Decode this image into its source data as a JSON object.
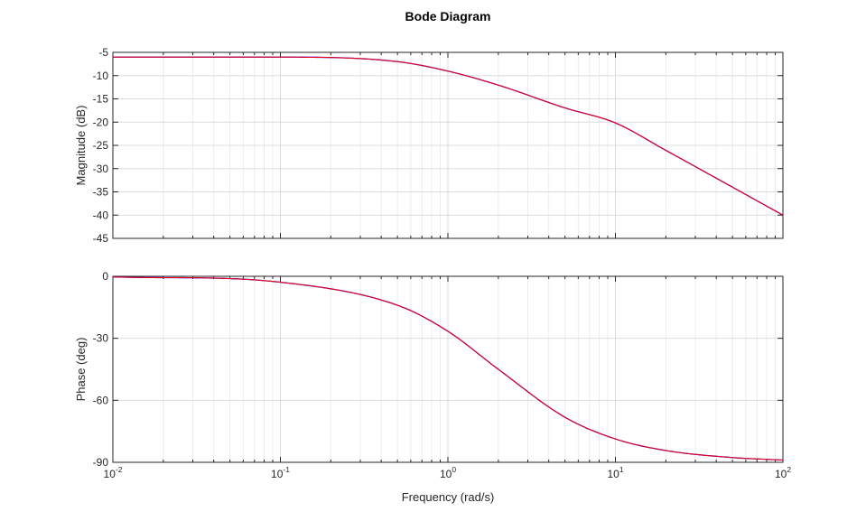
{
  "chart_data": {
    "type": "line",
    "title": "Bode Diagram",
    "xlabel": "Frequency (rad/s)",
    "xscale": "log",
    "xlim": [
      0.01,
      100
    ],
    "xticks": [
      {
        "base": "10",
        "exp": "-2"
      },
      {
        "base": "10",
        "exp": "-1"
      },
      {
        "base": "10",
        "exp": "0"
      },
      {
        "base": "10",
        "exp": "1"
      },
      {
        "base": "10",
        "exp": "2"
      }
    ],
    "grid": true,
    "subplots": [
      {
        "name": "magnitude",
        "ylabel": "Magnitude (dB)",
        "ylim": [
          -45,
          -5
        ],
        "yticks": [
          -5,
          -10,
          -15,
          -20,
          -25,
          -30,
          -35,
          -40,
          -45
        ],
        "series": [
          {
            "color": "#0000ff",
            "x": [
              0.01,
              0.1,
              0.5,
              1,
              2,
              5,
              10,
              20,
              50,
              100
            ],
            "y": [
              -6.02,
              -6.02,
              -6.99,
              -9.03,
              -12.04,
              -16.95,
              -20.17,
              -26.07,
              -33.99,
              -40.0
            ]
          },
          {
            "color": "#ff0000",
            "x": [
              0.01,
              0.1,
              0.5,
              1,
              2,
              5,
              10,
              20,
              50,
              100
            ],
            "y": [
              -6.02,
              -6.02,
              -6.99,
              -9.03,
              -12.04,
              -16.95,
              -20.17,
              -26.07,
              -33.99,
              -40.0
            ]
          }
        ]
      },
      {
        "name": "phase",
        "ylabel": "Phase (deg)",
        "ylim": [
          -90,
          0
        ],
        "yticks": [
          0,
          -30,
          -60,
          -90
        ],
        "series": [
          {
            "color": "#0000ff",
            "x": [
              0.01,
              0.1,
              0.5,
              1,
              2,
              5,
              10,
              20,
              50,
              100
            ],
            "y": [
              -0.29,
              -2.86,
              -14.0,
              -26.6,
              -45.0,
              -68.2,
              -78.7,
              -84.3,
              -87.7,
              -88.9
            ]
          },
          {
            "color": "#ff0000",
            "x": [
              0.01,
              0.1,
              0.5,
              1,
              2,
              5,
              10,
              20,
              50,
              100
            ],
            "y": [
              -0.29,
              -2.86,
              -14.0,
              -26.6,
              -45.0,
              -68.2,
              -78.7,
              -84.3,
              -87.7,
              -88.9
            ]
          }
        ]
      }
    ]
  }
}
